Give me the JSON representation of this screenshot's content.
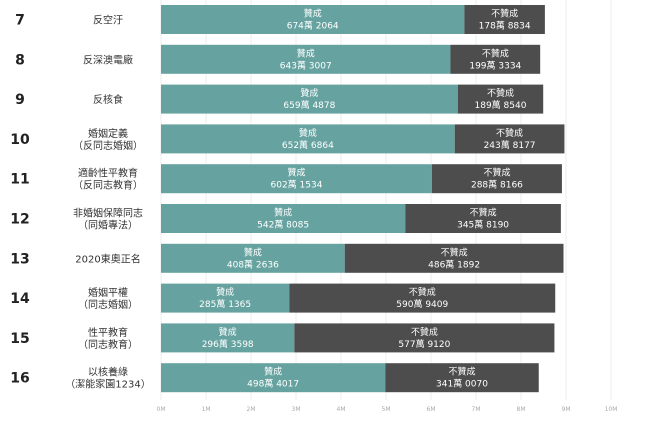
{
  "chart_data": {
    "type": "bar",
    "orientation": "horizontal",
    "stacked": true,
    "xlim": [
      0,
      10
    ],
    "x_ticks": [
      "0M",
      "1M",
      "2M",
      "3M",
      "4M",
      "5M",
      "6M",
      "7M",
      "8M",
      "9M",
      "10M"
    ],
    "grid": true,
    "colors": {
      "agree": "#66a3a0",
      "disagree": "#4d4d4d"
    },
    "series": [
      {
        "name": "贊成"
      },
      {
        "name": "不贊成"
      }
    ],
    "rows": [
      {
        "num": "7",
        "label": [
          "反空汙"
        ],
        "agree": 6.742064,
        "agree_text": "674萬 2064",
        "disagree": 1.788834,
        "disagree_text": "178萬 8834"
      },
      {
        "num": "8",
        "label": [
          "反深澳電廠"
        ],
        "agree": 6.433007,
        "agree_text": "643萬 3007",
        "disagree": 1.993334,
        "disagree_text": "199萬 3334"
      },
      {
        "num": "9",
        "label": [
          "反核食"
        ],
        "agree": 6.594878,
        "agree_text": "659萬 4878",
        "disagree": 1.89854,
        "disagree_text": "189萬 8540"
      },
      {
        "num": "10",
        "label": [
          "婚姻定義",
          "（反同志婚姻）"
        ],
        "agree": 6.526864,
        "agree_text": "652萬 6864",
        "disagree": 2.438177,
        "disagree_text": "243萬 8177"
      },
      {
        "num": "11",
        "label": [
          "適齡性平教育",
          "（反同志教育）"
        ],
        "agree": 6.021534,
        "agree_text": "602萬 1534",
        "disagree": 2.888166,
        "disagree_text": "288萬 8166"
      },
      {
        "num": "12",
        "label": [
          "非婚姻保障同志",
          "（同婚專法）"
        ],
        "agree": 5.428085,
        "agree_text": "542萬 8085",
        "disagree": 3.45819,
        "disagree_text": "345萬 8190"
      },
      {
        "num": "13",
        "label": [
          "2020東奧正名"
        ],
        "agree": 4.082636,
        "agree_text": "408萬 2636",
        "disagree": 4.861892,
        "disagree_text": "486萬 1892"
      },
      {
        "num": "14",
        "label": [
          "婚姻平權",
          "（同志婚姻）"
        ],
        "agree": 2.851365,
        "agree_text": "285萬 1365",
        "disagree": 5.909409,
        "disagree_text": "590萬 9409"
      },
      {
        "num": "15",
        "label": [
          "性平教育",
          "（同志教育）"
        ],
        "agree": 2.963598,
        "agree_text": "296萬 3598",
        "disagree": 5.77912,
        "disagree_text": "577萬 9120"
      },
      {
        "num": "16",
        "label": [
          "以核養綠",
          "（潔能家園1234）"
        ],
        "agree": 4.984017,
        "agree_text": "498萬 4017",
        "disagree": 3.41007,
        "disagree_text": "341萬 0070"
      }
    ]
  }
}
